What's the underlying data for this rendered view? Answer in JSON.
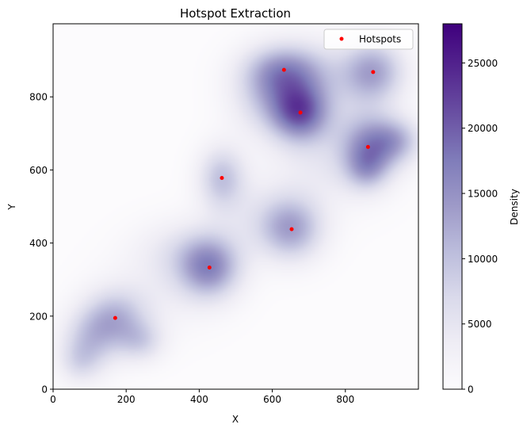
{
  "chart_data": {
    "type": "heatmap",
    "title": "Hotspot Extraction",
    "xlabel": "X",
    "ylabel": "Y",
    "xlim": [
      0,
      1000
    ],
    "ylim": [
      0,
      1000
    ],
    "x_ticks": [
      0,
      200,
      400,
      600,
      800
    ],
    "y_ticks": [
      0,
      200,
      400,
      600,
      800
    ],
    "grid": false,
    "colormap": "Purples",
    "colormap_stops": [
      "#fcfbfd",
      "#efedf5",
      "#dadaeb",
      "#bcbddc",
      "#9e9ac8",
      "#807dba",
      "#6a51a3",
      "#54278f",
      "#3f007d"
    ],
    "colorbar": {
      "label": "Density",
      "range": [
        0,
        28000
      ],
      "ticks": [
        0,
        5000,
        10000,
        15000,
        20000,
        25000
      ]
    },
    "hotspots": {
      "name": "Hotspots",
      "color": "#ff0000",
      "points": [
        {
          "x": 170,
          "y": 195
        },
        {
          "x": 428,
          "y": 333
        },
        {
          "x": 462,
          "y": 578
        },
        {
          "x": 653,
          "y": 438
        },
        {
          "x": 632,
          "y": 874
        },
        {
          "x": 677,
          "y": 757
        },
        {
          "x": 862,
          "y": 663
        },
        {
          "x": 876,
          "y": 868
        }
      ]
    },
    "density_components": [
      {
        "x": 677,
        "y": 757,
        "sx": 55,
        "sy": 55,
        "w": 16000
      },
      {
        "x": 632,
        "y": 874,
        "sx": 75,
        "sy": 50,
        "w": 10500
      },
      {
        "x": 590,
        "y": 800,
        "sx": 70,
        "sy": 70,
        "w": 7500
      },
      {
        "x": 720,
        "y": 840,
        "sx": 90,
        "sy": 80,
        "w": 5000
      },
      {
        "x": 876,
        "y": 868,
        "sx": 60,
        "sy": 60,
        "w": 12500
      },
      {
        "x": 862,
        "y": 663,
        "sx": 55,
        "sy": 65,
        "w": 12000
      },
      {
        "x": 940,
        "y": 680,
        "sx": 50,
        "sy": 45,
        "w": 9500
      },
      {
        "x": 860,
        "y": 600,
        "sx": 40,
        "sy": 40,
        "w": 6000
      },
      {
        "x": 750,
        "y": 630,
        "sx": 110,
        "sy": 90,
        "w": 4000
      },
      {
        "x": 462,
        "y": 578,
        "sx": 45,
        "sy": 60,
        "w": 9500
      },
      {
        "x": 653,
        "y": 438,
        "sx": 60,
        "sy": 60,
        "w": 11500
      },
      {
        "x": 570,
        "y": 470,
        "sx": 90,
        "sy": 70,
        "w": 3500
      },
      {
        "x": 428,
        "y": 333,
        "sx": 60,
        "sy": 60,
        "w": 14500
      },
      {
        "x": 350,
        "y": 380,
        "sx": 90,
        "sy": 60,
        "w": 4000
      },
      {
        "x": 170,
        "y": 195,
        "sx": 60,
        "sy": 55,
        "w": 9500
      },
      {
        "x": 100,
        "y": 130,
        "sx": 55,
        "sy": 60,
        "w": 8000
      },
      {
        "x": 240,
        "y": 130,
        "sx": 45,
        "sy": 40,
        "w": 6500
      },
      {
        "x": 70,
        "y": 70,
        "sx": 40,
        "sy": 40,
        "w": 4000
      },
      {
        "x": 280,
        "y": 260,
        "sx": 110,
        "sy": 80,
        "w": 2500
      }
    ]
  }
}
